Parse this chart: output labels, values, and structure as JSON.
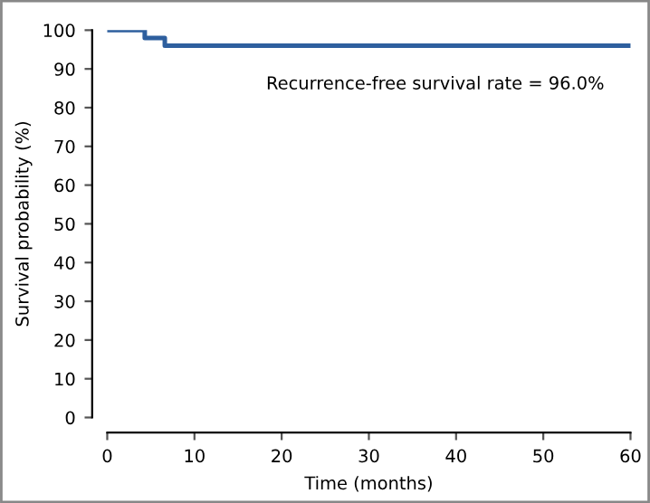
{
  "chart_data": {
    "type": "step",
    "xlabel": "Time (months)",
    "ylabel": "Survival probability (%)",
    "x": [
      0,
      4.3,
      6.6,
      60
    ],
    "series": [
      {
        "color": "#2e5f9e",
        "values": [
          100,
          98,
          96,
          96
        ]
      }
    ],
    "xlim": [
      0,
      60
    ],
    "ylim": [
      0,
      100
    ],
    "xticks": [
      0,
      10,
      20,
      30,
      40,
      50,
      60
    ],
    "yticks": [
      0,
      10,
      20,
      30,
      40,
      50,
      60,
      70,
      80,
      90,
      100
    ],
    "annotations": [
      "Recurrence-free survival rate = 96.0%"
    ],
    "grid": false,
    "legend": false
  }
}
